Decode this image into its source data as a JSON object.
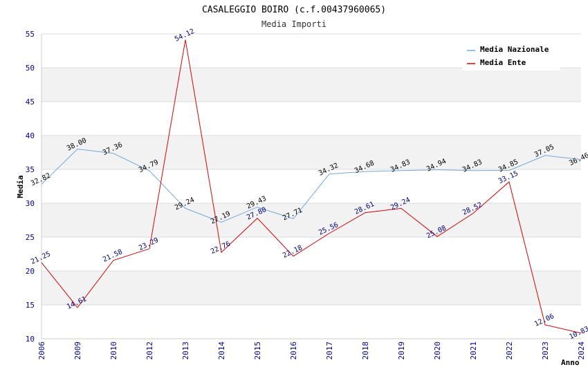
{
  "chart_data": {
    "type": "line",
    "title": "CASALEGGIO BOIRO (c.f.00437960065)",
    "subtitle": "Media Importi",
    "xlabel": "Anno",
    "ylabel": "Media",
    "ylim": [
      10,
      55
    ],
    "yticks": [
      10,
      15,
      20,
      25,
      30,
      35,
      40,
      45,
      50,
      55
    ],
    "grid": "horizontal bands",
    "legend_position": "top-right",
    "categories": [
      "2006",
      "2009",
      "2010",
      "2012",
      "2013",
      "2014",
      "2015",
      "2016",
      "2017",
      "2018",
      "2019",
      "2020",
      "2021",
      "2022",
      "2023",
      "2024"
    ],
    "series": [
      {
        "name": "Media Nazionale",
        "color": "#6fa8dc",
        "values": [
          32.82,
          38.0,
          37.36,
          34.79,
          29.24,
          27.19,
          29.43,
          27.71,
          34.32,
          34.68,
          34.83,
          34.94,
          34.83,
          34.85,
          37.05,
          36.46
        ],
        "labels": [
          "32.82",
          "38.00",
          "37.36",
          "34.79",
          "29.24",
          "27.19",
          "29.43",
          "27.71",
          "34.32",
          "34.68",
          "34.83",
          "34.94",
          "34.83",
          "34.85",
          "37.05",
          "36.46"
        ]
      },
      {
        "name": "Media Ente",
        "color": "#e00000",
        "values": [
          21.25,
          14.61,
          21.58,
          23.29,
          54.12,
          22.76,
          27.8,
          22.18,
          25.56,
          28.61,
          29.24,
          25.08,
          28.52,
          33.15,
          12.06,
          10.83
        ],
        "labels": [
          "21.25",
          "14.61",
          "21.58",
          "23.29",
          "54.12",
          "22.76",
          "27.80",
          "22.18",
          "25.56",
          "28.61",
          "29.24",
          "25.08",
          "28.52",
          "33.15",
          "12.06",
          "10.83"
        ]
      }
    ]
  }
}
